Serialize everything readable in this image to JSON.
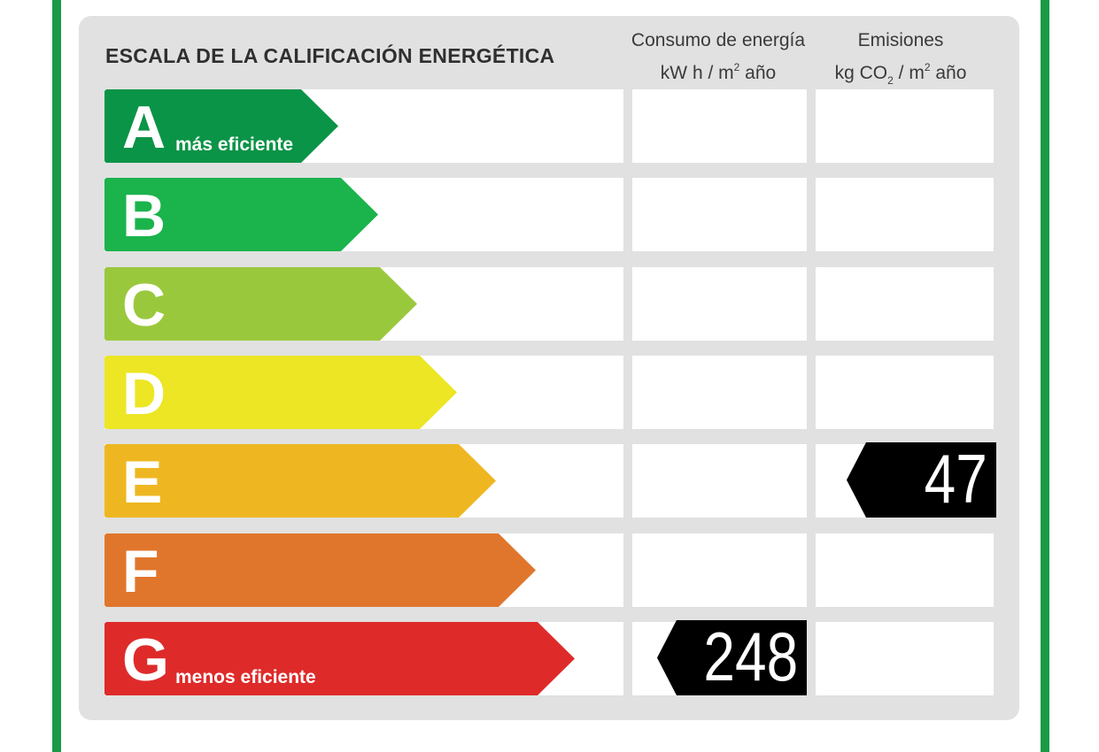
{
  "title": "ESCALA DE LA CALIFICACIÓN ENERGÉTICA",
  "columns": {
    "consumption": {
      "line1": "Consumo de energía",
      "unit_pre": "kW h  / m",
      "unit_exp": "2",
      "unit_post": " año"
    },
    "emissions": {
      "line1": "Emisiones",
      "unit_pre": "kg CO",
      "unit_sub": "2",
      "unit_mid": "  / m",
      "unit_exp": "2",
      "unit_post": " año"
    }
  },
  "ratings": [
    {
      "letter": "A",
      "label": "más eficiente",
      "color": "#0a9447"
    },
    {
      "letter": "B",
      "label": "",
      "color": "#1bb34c"
    },
    {
      "letter": "C",
      "label": "",
      "color": "#9ac83d"
    },
    {
      "letter": "D",
      "label": "",
      "color": "#ece624"
    },
    {
      "letter": "E",
      "label": "",
      "color": "#eeb721"
    },
    {
      "letter": "F",
      "label": "",
      "color": "#e0762c"
    },
    {
      "letter": "G",
      "label": "menos eficiente",
      "color": "#de2b2a"
    }
  ],
  "consumption_value": {
    "value": "248",
    "rating": "G"
  },
  "emissions_value": {
    "value": "47",
    "rating": "E"
  }
}
